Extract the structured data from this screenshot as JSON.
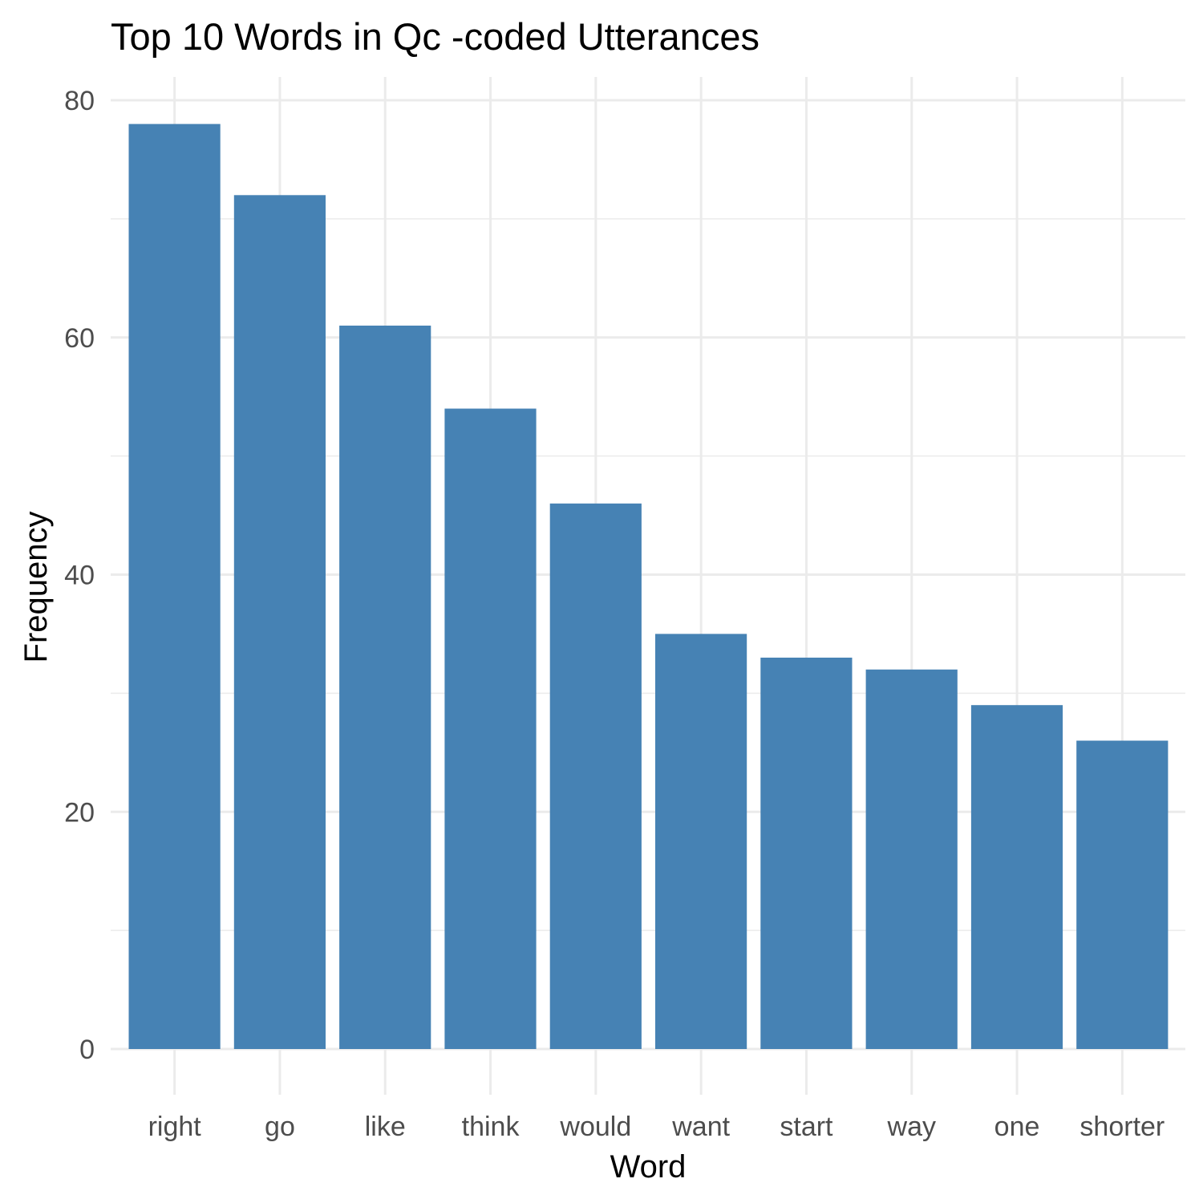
{
  "chart_data": {
    "type": "bar",
    "title": "Top 10 Words in Qc -coded Utterances",
    "xlabel": "Word",
    "ylabel": "Frequency",
    "categories": [
      "right",
      "go",
      "like",
      "think",
      "would",
      "want",
      "start",
      "way",
      "one",
      "shorter"
    ],
    "values": [
      78,
      72,
      61,
      54,
      46,
      35,
      33,
      32,
      29,
      26
    ],
    "ylim": [
      0,
      80
    ],
    "yticks": [
      0,
      20,
      40,
      60,
      80
    ],
    "grid": true,
    "legend": "none",
    "bar_color": "#4682b4"
  }
}
